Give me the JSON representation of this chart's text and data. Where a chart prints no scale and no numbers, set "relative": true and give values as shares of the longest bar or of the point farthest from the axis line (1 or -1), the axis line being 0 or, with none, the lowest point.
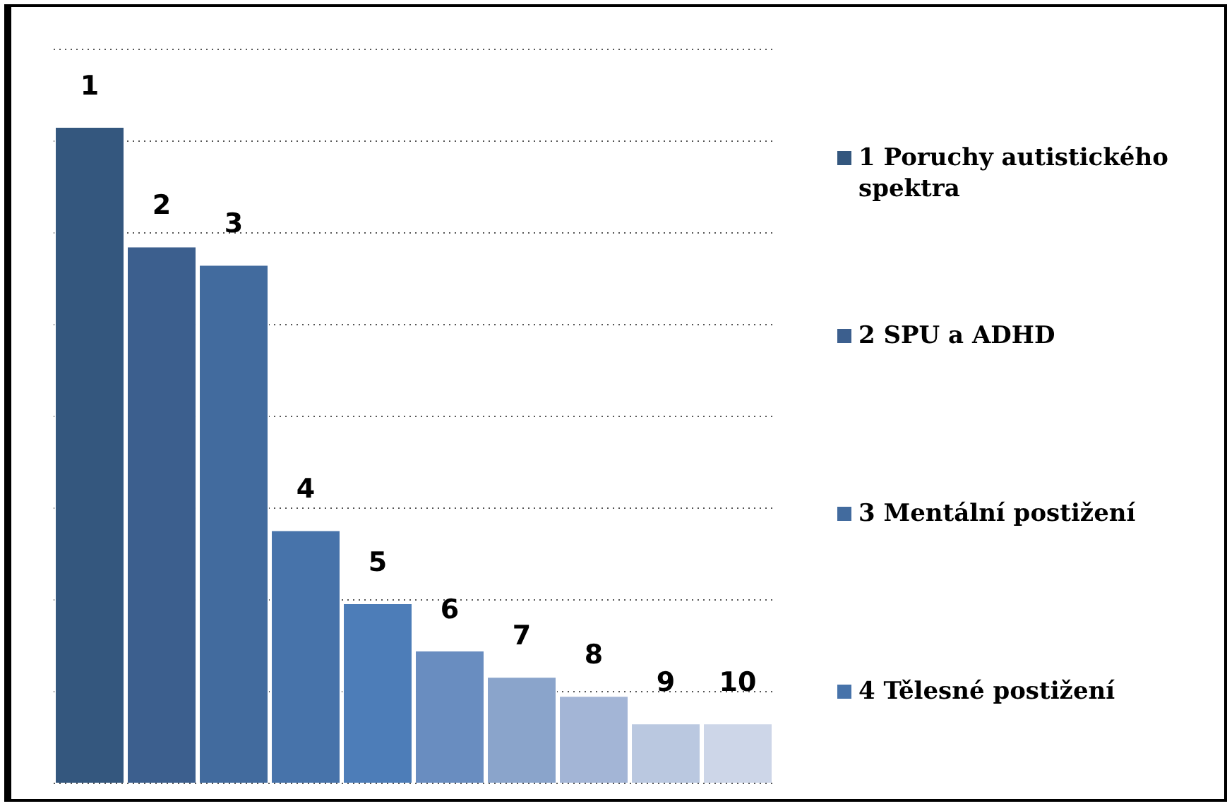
{
  "chart_data": {
    "type": "bar",
    "relative": true,
    "grid": "y",
    "legend": "right",
    "categories": [
      "1",
      "2",
      "3",
      "4",
      "5",
      "6",
      "7",
      "8",
      "9",
      "10"
    ],
    "series": [
      {
        "name": "1 Poruchy autistického spektra",
        "color": "#34577e",
        "values": [
          1,
          null,
          null,
          null,
          null,
          null,
          null,
          null,
          null,
          null
        ]
      },
      {
        "name": "2 SPU a ADHD",
        "color": "#3c5f8e",
        "values": [
          null,
          0.818,
          null,
          null,
          null,
          null,
          null,
          null,
          null,
          null
        ]
      },
      {
        "name": "3 Mentální postižení",
        "color": "#426b9e",
        "values": [
          null,
          null,
          0.79,
          null,
          null,
          null,
          null,
          null,
          null,
          null
        ]
      },
      {
        "name": "4 Tělesné postižení",
        "color": "#4773aa",
        "values": [
          null,
          null,
          null,
          0.386,
          null,
          null,
          null,
          null,
          null,
          null
        ]
      },
      {
        "color": "#4d7db8",
        "values": [
          null,
          null,
          null,
          null,
          0.275,
          null,
          null,
          null,
          null,
          null
        ]
      },
      {
        "color": "#698dc0",
        "values": [
          null,
          null,
          null,
          null,
          null,
          0.203,
          null,
          null,
          null,
          null
        ]
      },
      {
        "color": "#8aa4cb",
        "values": [
          null,
          null,
          null,
          null,
          null,
          null,
          0.163,
          null,
          null,
          null
        ]
      },
      {
        "color": "#a3b5d6",
        "values": [
          null,
          null,
          null,
          null,
          null,
          null,
          null,
          0.134,
          null,
          null
        ]
      },
      {
        "color": "#bac8e0",
        "values": [
          null,
          null,
          null,
          null,
          null,
          null,
          null,
          null,
          0.092,
          null
        ]
      },
      {
        "color": "#cdd6e8",
        "values": [
          null,
          null,
          null,
          null,
          null,
          null,
          null,
          null,
          null,
          0.092
        ]
      }
    ]
  }
}
